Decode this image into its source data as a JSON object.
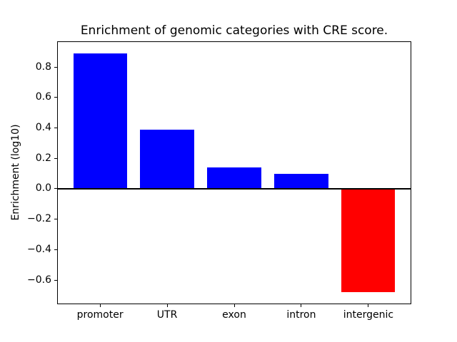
{
  "chart_data": {
    "type": "bar",
    "title": "Enrichment of genomic categories with CRE score.",
    "xlabel": "",
    "ylabel": "Enrichment (log10)",
    "categories": [
      "promoter",
      "UTR",
      "exon",
      "intron",
      "intergenic"
    ],
    "values": [
      0.89,
      0.39,
      0.14,
      0.1,
      -0.68
    ],
    "positive_color": "#0000ff",
    "negative_color": "#ff0000",
    "bar_width_units": 0.8,
    "xlim": [
      -0.64,
      4.64
    ],
    "ylim": [
      -0.7585,
      0.9685
    ],
    "yticks": [
      0.8,
      0.6,
      0.4,
      0.2,
      0.0,
      -0.2,
      -0.4,
      -0.6
    ],
    "zero_line": true,
    "grid": false,
    "legend": "none",
    "background_color": "#ffffff",
    "axis_color": "#000000"
  }
}
